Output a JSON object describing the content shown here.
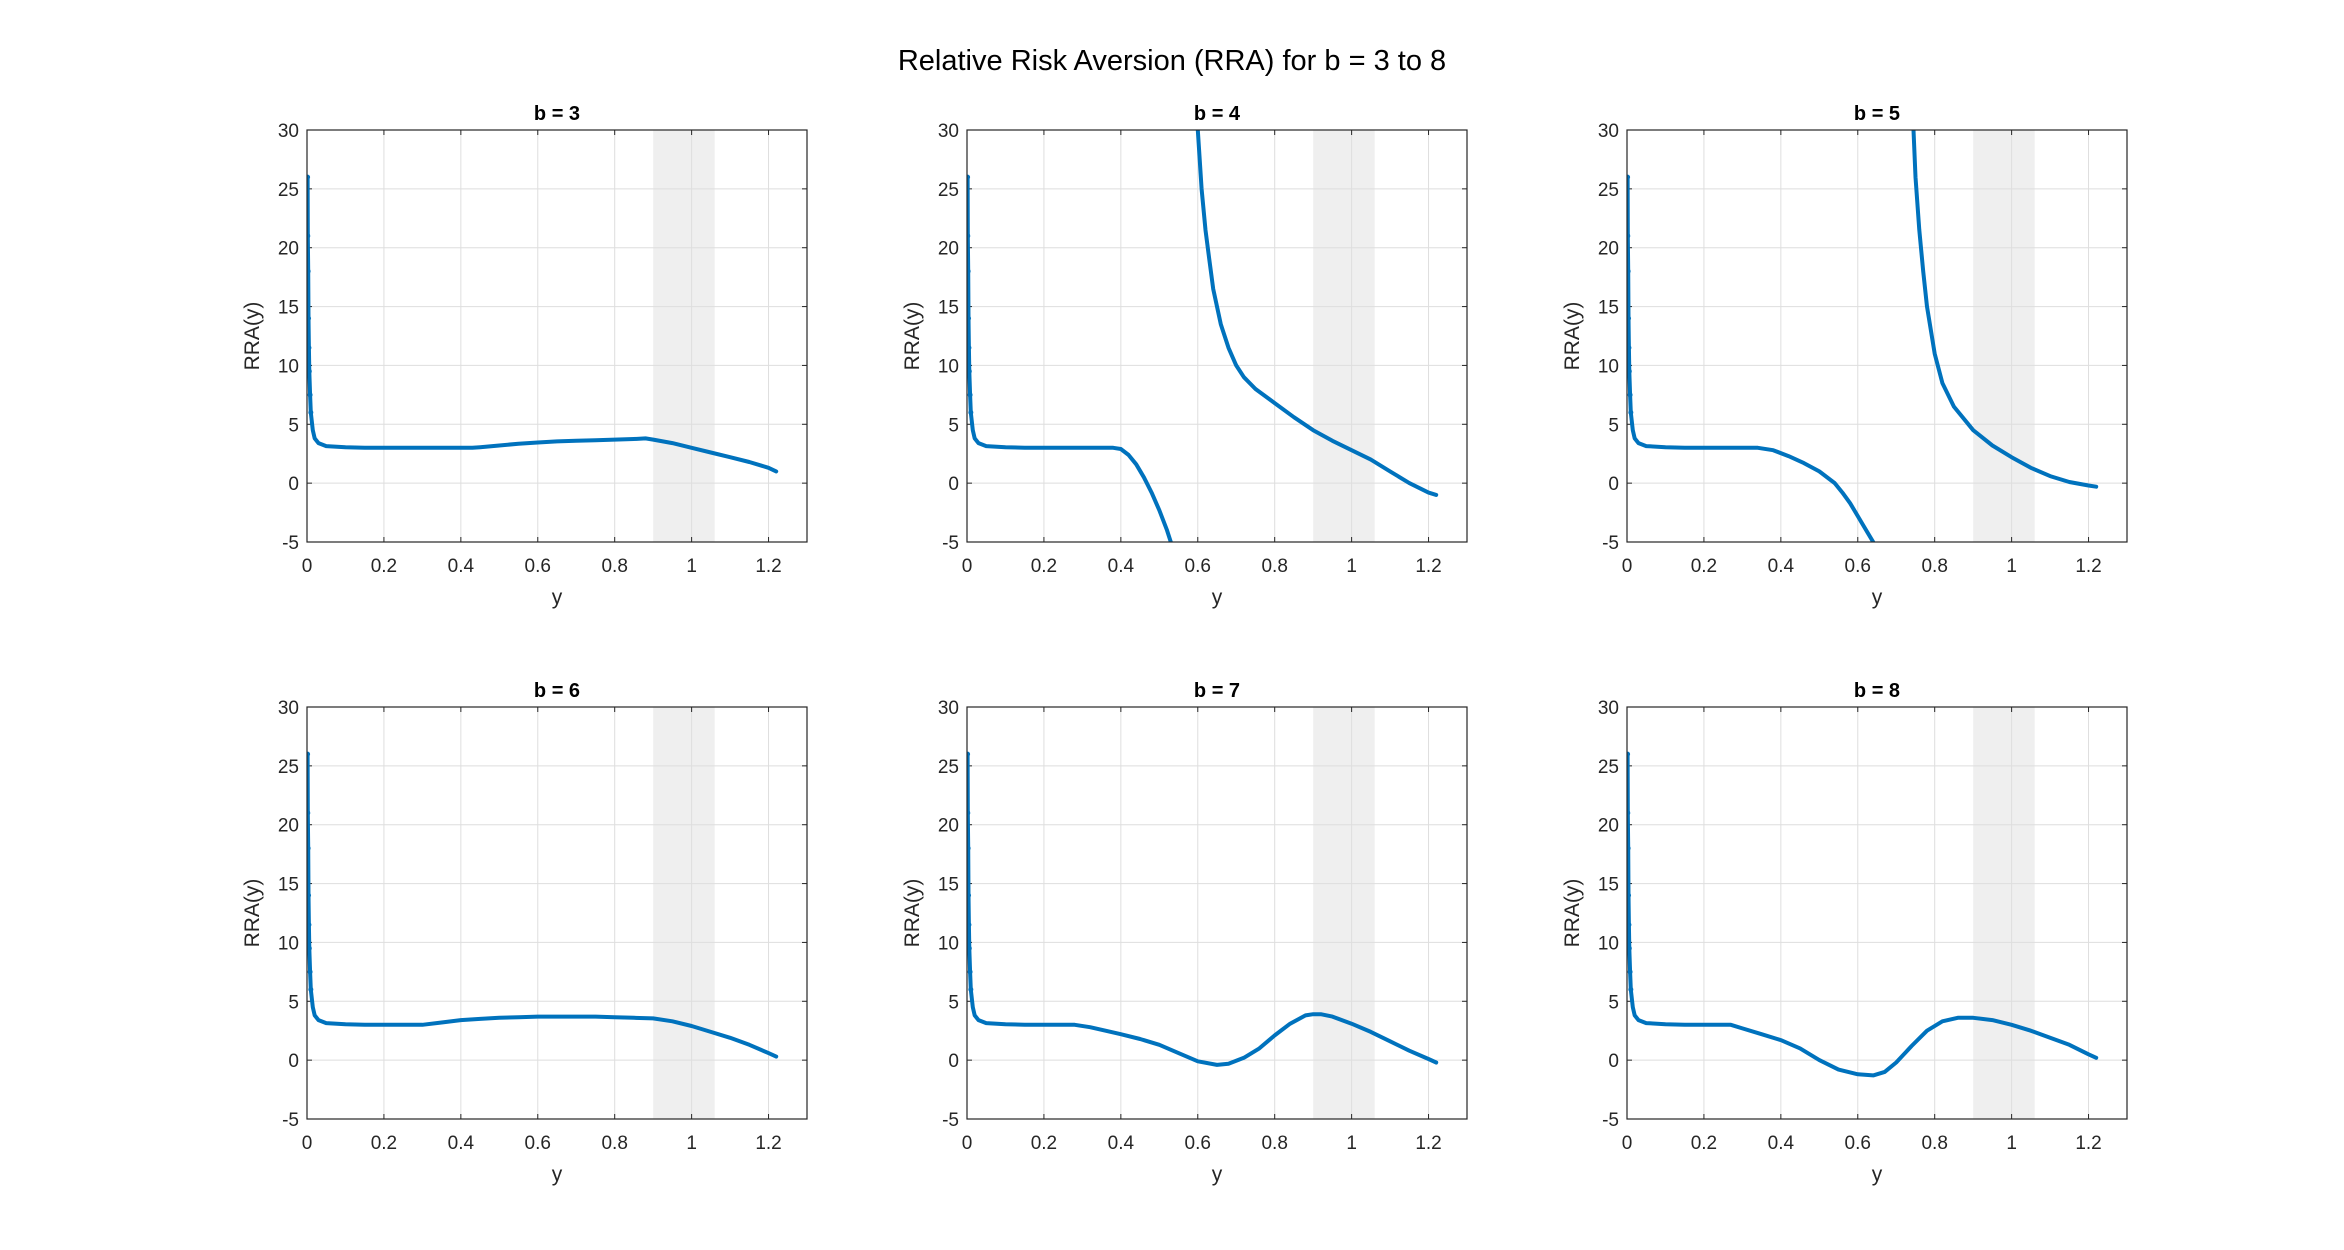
{
  "figure": {
    "title": "Relative Risk Aversion (RRA) for b = 3 to 8",
    "line_color": "#0072BD",
    "band_color": "#efefef"
  },
  "chart_data": [
    {
      "type": "line",
      "title": "b = 3",
      "xlabel": "y",
      "ylabel": "RRA(y)",
      "xlim": [
        0,
        1.3
      ],
      "ylim": [
        -5,
        30
      ],
      "xticks": [
        "0",
        "0.2",
        "0.4",
        "0.6",
        "0.8",
        "1",
        "1.2"
      ],
      "yticks": [
        "-5",
        "0",
        "5",
        "10",
        "15",
        "20",
        "25",
        "30"
      ],
      "grid": true,
      "shaded_band": [
        0.9,
        1.06
      ],
      "series": [
        {
          "x": [
            0.0015,
            0.002,
            0.003,
            0.004,
            0.005,
            0.006,
            0.008,
            0.01,
            0.015,
            0.02,
            0.03,
            0.05,
            0.1,
            0.15,
            0.2,
            0.25,
            0.3,
            0.35,
            0.4,
            0.43,
            0.45,
            0.5,
            0.55,
            0.6,
            0.65,
            0.7,
            0.75,
            0.8,
            0.85,
            0.88,
            0.9,
            0.95,
            1.0,
            1.05,
            1.1,
            1.15,
            1.2,
            1.22
          ],
          "y": [
            26,
            21,
            18,
            14,
            11.5,
            9.5,
            7.5,
            6,
            4.5,
            3.8,
            3.4,
            3.15,
            3.05,
            3.0,
            3.0,
            3.0,
            3.0,
            3.0,
            3.0,
            3.0,
            3.05,
            3.2,
            3.35,
            3.45,
            3.55,
            3.6,
            3.65,
            3.7,
            3.75,
            3.8,
            3.7,
            3.4,
            3.0,
            2.6,
            2.2,
            1.8,
            1.3,
            1.0
          ]
        }
      ]
    },
    {
      "type": "line",
      "title": "b = 4",
      "xlabel": "y",
      "ylabel": "RRA(y)",
      "xlim": [
        0,
        1.3
      ],
      "ylim": [
        -5,
        30
      ],
      "xticks": [
        "0",
        "0.2",
        "0.4",
        "0.6",
        "0.8",
        "1",
        "1.2"
      ],
      "yticks": [
        "-5",
        "0",
        "5",
        "10",
        "15",
        "20",
        "25",
        "30"
      ],
      "grid": true,
      "shaded_band": [
        0.9,
        1.06
      ],
      "series": [
        {
          "x": [
            0.0015,
            0.002,
            0.003,
            0.004,
            0.005,
            0.006,
            0.008,
            0.01,
            0.015,
            0.02,
            0.03,
            0.05,
            0.1,
            0.15,
            0.2,
            0.25,
            0.3,
            0.35,
            0.38,
            0.4,
            0.42,
            0.44,
            0.46,
            0.48,
            0.5,
            0.52,
            0.53
          ],
          "y": [
            26,
            21,
            18,
            14,
            11.5,
            9.5,
            7.5,
            6,
            4.5,
            3.8,
            3.4,
            3.15,
            3.05,
            3.0,
            3.0,
            3.0,
            3.0,
            3.0,
            3.0,
            2.9,
            2.4,
            1.6,
            0.5,
            -0.8,
            -2.3,
            -4.0,
            -5.0
          ]
        },
        {
          "x": [
            0.6,
            0.61,
            0.62,
            0.63,
            0.64,
            0.66,
            0.68,
            0.7,
            0.72,
            0.75,
            0.8,
            0.85,
            0.9,
            0.95,
            1.0,
            1.05,
            1.1,
            1.15,
            1.2,
            1.22
          ],
          "y": [
            30,
            25,
            21.5,
            19,
            16.5,
            13.5,
            11.5,
            10.0,
            9.0,
            8.0,
            6.8,
            5.6,
            4.5,
            3.6,
            2.8,
            2.0,
            1.0,
            0.0,
            -0.8,
            -1.0
          ]
        }
      ]
    },
    {
      "type": "line",
      "title": "b = 5",
      "xlabel": "y",
      "ylabel": "RRA(y)",
      "xlim": [
        0,
        1.3
      ],
      "ylim": [
        -5,
        30
      ],
      "xticks": [
        "0",
        "0.2",
        "0.4",
        "0.6",
        "0.8",
        "1",
        "1.2"
      ],
      "yticks": [
        "-5",
        "0",
        "5",
        "10",
        "15",
        "20",
        "25",
        "30"
      ],
      "grid": true,
      "shaded_band": [
        0.9,
        1.06
      ],
      "series": [
        {
          "x": [
            0.0015,
            0.002,
            0.003,
            0.004,
            0.005,
            0.006,
            0.008,
            0.01,
            0.015,
            0.02,
            0.03,
            0.05,
            0.1,
            0.15,
            0.2,
            0.25,
            0.3,
            0.34,
            0.38,
            0.42,
            0.46,
            0.5,
            0.54,
            0.56,
            0.58,
            0.6,
            0.62,
            0.64
          ],
          "y": [
            26,
            21,
            18,
            14,
            11.5,
            9.5,
            7.5,
            6,
            4.5,
            3.8,
            3.4,
            3.15,
            3.05,
            3.0,
            3.0,
            3.0,
            3.0,
            3.0,
            2.8,
            2.3,
            1.7,
            1.0,
            0.0,
            -0.8,
            -1.7,
            -2.8,
            -3.9,
            -5.0
          ]
        },
        {
          "x": [
            0.745,
            0.75,
            0.76,
            0.77,
            0.78,
            0.8,
            0.82,
            0.85,
            0.9,
            0.95,
            1.0,
            1.05,
            1.1,
            1.15,
            1.2,
            1.22
          ],
          "y": [
            30,
            26,
            21.5,
            18,
            15,
            11.0,
            8.5,
            6.5,
            4.5,
            3.2,
            2.2,
            1.3,
            0.6,
            0.1,
            -0.2,
            -0.3
          ]
        }
      ]
    },
    {
      "type": "line",
      "title": "b = 6",
      "xlabel": "y",
      "ylabel": "RRA(y)",
      "xlim": [
        0,
        1.3
      ],
      "ylim": [
        -5,
        30
      ],
      "xticks": [
        "0",
        "0.2",
        "0.4",
        "0.6",
        "0.8",
        "1",
        "1.2"
      ],
      "yticks": [
        "-5",
        "0",
        "5",
        "10",
        "15",
        "20",
        "25",
        "30"
      ],
      "grid": true,
      "shaded_band": [
        0.9,
        1.06
      ],
      "series": [
        {
          "x": [
            0.0015,
            0.002,
            0.003,
            0.004,
            0.005,
            0.006,
            0.008,
            0.01,
            0.015,
            0.02,
            0.03,
            0.05,
            0.1,
            0.15,
            0.2,
            0.25,
            0.3,
            0.35,
            0.4,
            0.45,
            0.5,
            0.55,
            0.6,
            0.65,
            0.7,
            0.75,
            0.8,
            0.85,
            0.9,
            0.95,
            1.0,
            1.05,
            1.1,
            1.15,
            1.2,
            1.22
          ],
          "y": [
            26,
            21,
            18,
            14,
            11.5,
            9.5,
            7.5,
            6,
            4.5,
            3.8,
            3.4,
            3.15,
            3.05,
            3.0,
            3.0,
            3.0,
            3.0,
            3.2,
            3.4,
            3.5,
            3.6,
            3.65,
            3.7,
            3.7,
            3.7,
            3.7,
            3.65,
            3.6,
            3.55,
            3.3,
            2.9,
            2.4,
            1.9,
            1.3,
            0.6,
            0.3
          ]
        }
      ]
    },
    {
      "type": "line",
      "title": "b = 7",
      "xlabel": "y",
      "ylabel": "RRA(y)",
      "xlim": [
        0,
        1.3
      ],
      "ylim": [
        -5,
        30
      ],
      "xticks": [
        "0",
        "0.2",
        "0.4",
        "0.6",
        "0.8",
        "1",
        "1.2"
      ],
      "yticks": [
        "-5",
        "0",
        "5",
        "10",
        "15",
        "20",
        "25",
        "30"
      ],
      "grid": true,
      "shaded_band": [
        0.9,
        1.06
      ],
      "series": [
        {
          "x": [
            0.0015,
            0.002,
            0.003,
            0.004,
            0.005,
            0.006,
            0.008,
            0.01,
            0.015,
            0.02,
            0.03,
            0.05,
            0.1,
            0.15,
            0.2,
            0.25,
            0.28,
            0.32,
            0.36,
            0.4,
            0.45,
            0.5,
            0.55,
            0.6,
            0.65,
            0.68,
            0.72,
            0.76,
            0.8,
            0.84,
            0.88,
            0.9,
            0.92,
            0.95,
            1.0,
            1.05,
            1.1,
            1.15,
            1.2,
            1.22
          ],
          "y": [
            26,
            21,
            18,
            14,
            11.5,
            9.5,
            7.5,
            6,
            4.5,
            3.8,
            3.4,
            3.15,
            3.05,
            3.0,
            3.0,
            3.0,
            3.0,
            2.8,
            2.5,
            2.2,
            1.8,
            1.3,
            0.6,
            -0.1,
            -0.4,
            -0.3,
            0.2,
            1.0,
            2.1,
            3.1,
            3.8,
            3.9,
            3.9,
            3.7,
            3.1,
            2.4,
            1.6,
            0.8,
            0.1,
            -0.2
          ]
        }
      ]
    },
    {
      "type": "line",
      "title": "b = 8",
      "xlabel": "y",
      "ylabel": "RRA(y)",
      "xlim": [
        0,
        1.3
      ],
      "ylim": [
        -5,
        30
      ],
      "xticks": [
        "0",
        "0.2",
        "0.4",
        "0.6",
        "0.8",
        "1",
        "1.2"
      ],
      "yticks": [
        "-5",
        "0",
        "5",
        "10",
        "15",
        "20",
        "25",
        "30"
      ],
      "grid": true,
      "shaded_band": [
        0.9,
        1.06
      ],
      "series": [
        {
          "x": [
            0.0015,
            0.002,
            0.003,
            0.004,
            0.005,
            0.006,
            0.008,
            0.01,
            0.015,
            0.02,
            0.03,
            0.05,
            0.1,
            0.15,
            0.2,
            0.25,
            0.27,
            0.3,
            0.35,
            0.4,
            0.45,
            0.5,
            0.55,
            0.6,
            0.64,
            0.67,
            0.7,
            0.74,
            0.78,
            0.82,
            0.86,
            0.9,
            0.95,
            1.0,
            1.05,
            1.1,
            1.15,
            1.2,
            1.22
          ],
          "y": [
            26,
            21,
            18,
            14,
            11.5,
            9.5,
            7.5,
            6,
            4.5,
            3.8,
            3.4,
            3.15,
            3.05,
            3.0,
            3.0,
            3.0,
            3.0,
            2.7,
            2.2,
            1.7,
            1.0,
            0.0,
            -0.8,
            -1.2,
            -1.3,
            -1.0,
            -0.2,
            1.2,
            2.5,
            3.3,
            3.6,
            3.6,
            3.4,
            3.0,
            2.5,
            1.9,
            1.3,
            0.5,
            0.2
          ]
        }
      ]
    }
  ]
}
